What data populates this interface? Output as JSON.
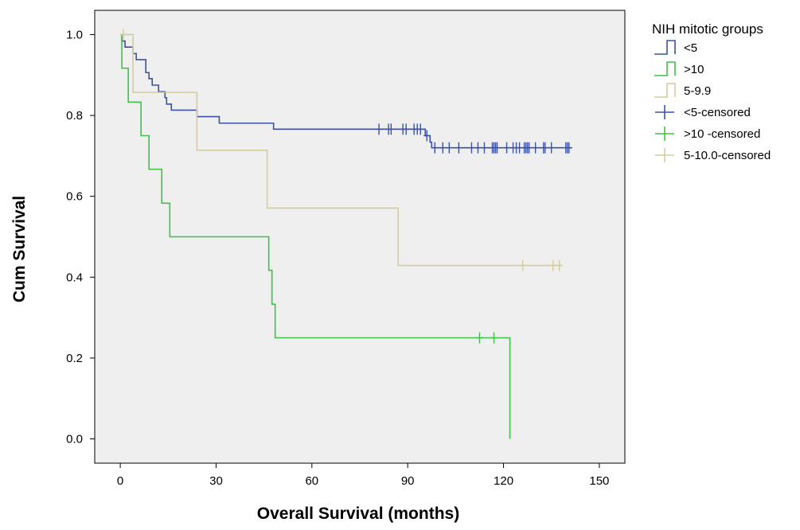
{
  "chart_data": {
    "type": "line",
    "subtype": "kaplan-meier-step",
    "xlabel": "Overall Survival (months)",
    "ylabel": "Cum Survival",
    "xlim": [
      -8,
      158
    ],
    "ylim": [
      -0.06,
      1.06
    ],
    "x_ticks": [
      0,
      30,
      60,
      90,
      120,
      150
    ],
    "x_tick_labels": [
      "0",
      "30",
      "60",
      "90",
      "120",
      "150"
    ],
    "y_ticks": [
      0.0,
      0.2,
      0.4,
      0.6,
      0.8,
      1.0
    ],
    "y_tick_labels": [
      "0.0",
      "0.2",
      "0.4",
      "0.6",
      "0.8",
      "1.0"
    ],
    "grid": false,
    "plot_background": "#efefef",
    "legend": {
      "title": "NIH mitotic groups",
      "position": "right",
      "entries": [
        {
          "label": "<5",
          "kind": "step",
          "color": "#3c52a1"
        },
        {
          "label": ">10",
          "kind": "step",
          "color": "#3fc14a"
        },
        {
          "label": "5-9.9",
          "kind": "step",
          "color": "#d5cc9c"
        },
        {
          "label": "<5-censored",
          "kind": "censor",
          "color": "#3c52a1"
        },
        {
          "label": ">10 -censored",
          "kind": "censor",
          "color": "#3fc14a"
        },
        {
          "label": "5-10.0-censored",
          "kind": "censor",
          "color": "#d5cc9c"
        }
      ]
    },
    "series": [
      {
        "name": "<5",
        "color": "#3c52a1",
        "steps": [
          [
            0,
            1.0
          ],
          [
            0.5,
            0.984
          ],
          [
            1.5,
            0.969
          ],
          [
            4,
            0.953
          ],
          [
            5,
            0.938
          ],
          [
            8,
            0.906
          ],
          [
            9,
            0.891
          ],
          [
            10,
            0.875
          ],
          [
            12,
            0.859
          ],
          [
            14,
            0.844
          ],
          [
            14.5,
            0.828
          ],
          [
            16,
            0.813
          ],
          [
            24,
            0.797
          ],
          [
            31,
            0.781
          ],
          [
            48,
            0.766
          ],
          [
            95.5,
            0.75
          ],
          [
            97,
            0.734
          ],
          [
            97.5,
            0.72
          ],
          [
            141.5,
            0.72
          ]
        ],
        "censored": [
          [
            81,
            0.766
          ],
          [
            84,
            0.766
          ],
          [
            84.8,
            0.766
          ],
          [
            88.5,
            0.766
          ],
          [
            89.5,
            0.766
          ],
          [
            92,
            0.766
          ],
          [
            93,
            0.766
          ],
          [
            94,
            0.766
          ],
          [
            96,
            0.75
          ],
          [
            98.5,
            0.72
          ],
          [
            101,
            0.72
          ],
          [
            103,
            0.72
          ],
          [
            106,
            0.72
          ],
          [
            110,
            0.72
          ],
          [
            112,
            0.72
          ],
          [
            114,
            0.72
          ],
          [
            116.5,
            0.72
          ],
          [
            117,
            0.72
          ],
          [
            117.5,
            0.72
          ],
          [
            118,
            0.72
          ],
          [
            121,
            0.72
          ],
          [
            123,
            0.72
          ],
          [
            124,
            0.72
          ],
          [
            125,
            0.72
          ],
          [
            126.5,
            0.72
          ],
          [
            127,
            0.72
          ],
          [
            127.5,
            0.72
          ],
          [
            128,
            0.72
          ],
          [
            130,
            0.72
          ],
          [
            132.5,
            0.72
          ],
          [
            133,
            0.72
          ],
          [
            135,
            0.72
          ],
          [
            139.5,
            0.72
          ],
          [
            140,
            0.72
          ],
          [
            140.5,
            0.72
          ]
        ]
      },
      {
        "name": ">10",
        "color": "#3fc14a",
        "steps": [
          [
            0,
            1.0
          ],
          [
            0.5,
            0.917
          ],
          [
            2.5,
            0.833
          ],
          [
            6.5,
            0.75
          ],
          [
            9,
            0.667
          ],
          [
            13,
            0.583
          ],
          [
            15.5,
            0.5
          ],
          [
            46.5,
            0.417
          ],
          [
            47.5,
            0.333
          ],
          [
            48.5,
            0.25
          ],
          [
            122,
            0.25
          ],
          [
            122,
            0.0
          ]
        ],
        "censored": [
          [
            112.5,
            0.25
          ],
          [
            117,
            0.25
          ]
        ]
      },
      {
        "name": "5-9.9",
        "color": "#d5cc9c",
        "steps": [
          [
            0,
            1.0
          ],
          [
            4,
            0.857
          ],
          [
            24,
            0.714
          ],
          [
            46,
            0.571
          ],
          [
            87,
            0.429
          ],
          [
            138.5,
            0.429
          ]
        ],
        "censored": [
          [
            1,
            1.0
          ],
          [
            126,
            0.429
          ],
          [
            135.5,
            0.429
          ],
          [
            137.5,
            0.429
          ]
        ]
      }
    ]
  }
}
